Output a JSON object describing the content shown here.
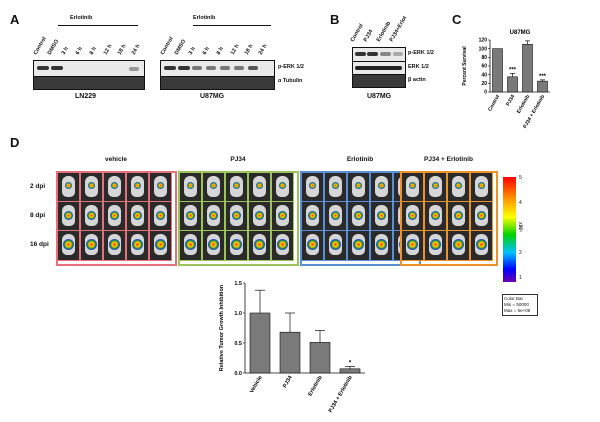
{
  "figure": {
    "panels": {
      "A": {
        "label": "A",
        "erlotinib_bar_label": "Erlotinib",
        "lanes_left": [
          "Control",
          "DMSO",
          "3 h",
          "6 h",
          "8 h",
          "12 h",
          "18 h",
          "24 h"
        ],
        "lanes_right": [
          "Control",
          "DMSO",
          "3 h",
          "6 h",
          "8 h",
          "12 h",
          "18 h",
          "24 h"
        ],
        "row_labels": [
          "p-ERK 1/2",
          "α Tubulin"
        ],
        "cell_lines": [
          "LN229",
          "U87MG"
        ]
      },
      "B": {
        "label": "B",
        "lanes": [
          "Control",
          "PJ34",
          "Erlotinib",
          "PJ34+Erlot"
        ],
        "row_labels": [
          "p-ERK 1/2",
          "ERK 1/2",
          "β actin"
        ],
        "cell_line": "U87MG"
      },
      "C": {
        "label": "C"
      },
      "D": {
        "label": "D",
        "groups": [
          "vehicle",
          "PJ34",
          "Erlotinib",
          "PJ34 + Erlotinib"
        ],
        "group_colors": [
          "#e8707a",
          "#9cc45a",
          "#5a8fd8",
          "#f0922a"
        ],
        "rows": [
          "2 dpi",
          "8 dpi",
          "16 dpi"
        ],
        "colorbar_label": "p/s/cm²/sr",
        "colorbar_unit": "x10⁶",
        "colorbar_ticks": [
          "5",
          "4",
          "3",
          "2",
          "1"
        ],
        "colorbar_info": [
          "Color Bar",
          "Min = 50000",
          "Max = 5e+06"
        ]
      }
    }
  },
  "chart_data": [
    {
      "type": "bar",
      "panel": "C",
      "title": "U87MG",
      "categories": [
        "Control",
        "PJ34",
        "Erlotinib",
        "PJ34 + Erlotinib"
      ],
      "values": [
        100,
        35,
        110,
        25
      ],
      "errors": [
        0,
        8,
        8,
        3
      ],
      "significance": [
        "",
        "***",
        "",
        "***"
      ],
      "ylabel": "Percent Survival",
      "ylim": [
        0,
        120
      ],
      "yticks": [
        "0",
        "20",
        "40",
        "60",
        "80",
        "100",
        "120"
      ]
    },
    {
      "type": "bar",
      "panel": "D",
      "categories": [
        "Vehicle",
        "PJ34",
        "Erlotinib",
        "PJ34 + Erlotinib"
      ],
      "values": [
        1.0,
        0.68,
        0.51,
        0.07
      ],
      "errors": [
        0.38,
        0.32,
        0.2,
        0.04
      ],
      "significance": [
        "",
        "",
        "",
        "*"
      ],
      "ylabel": "Relative Tumor Growth Inhibition",
      "ylim": [
        0,
        1.5
      ],
      "yticks": [
        "0.0",
        "0.5",
        "1.0",
        "1.5"
      ]
    }
  ]
}
